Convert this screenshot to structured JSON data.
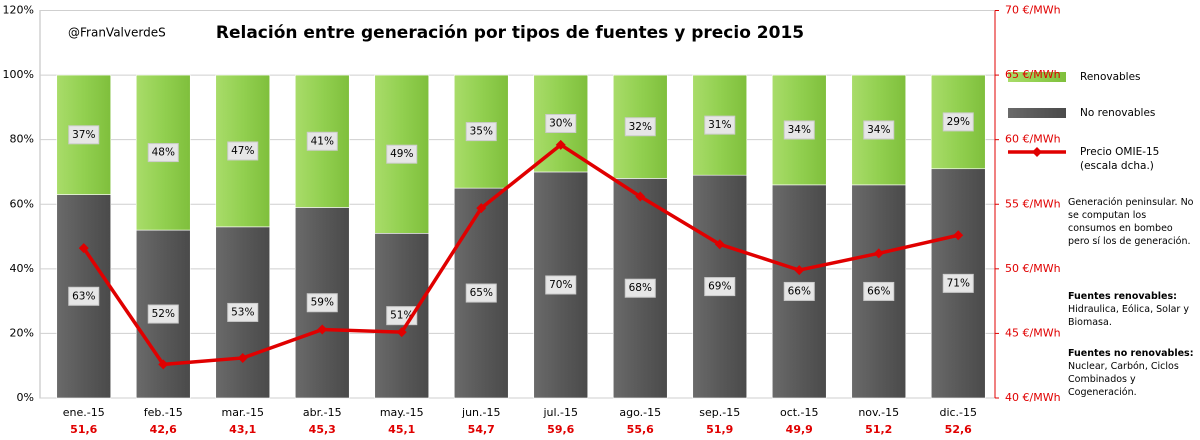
{
  "chart_data": {
    "type": "bar",
    "title": "Relación entre  generación por tipos de fuentes y precio 2015",
    "watermark": "@FranValverdeS",
    "categories": [
      "ene.-15",
      "feb.-15",
      "mar.-15",
      "abr.-15",
      "may.-15",
      "jun.-15",
      "jul.-15",
      "ago.-15",
      "sep.-15",
      "oct.-15",
      "nov.-15",
      "dic.-15"
    ],
    "series": [
      {
        "name": "Renovables",
        "type": "bar",
        "color": "#92d050",
        "values": [
          37,
          48,
          47,
          41,
          49,
          35,
          30,
          32,
          31,
          34,
          34,
          29
        ],
        "value_labels": [
          "37%",
          "48%",
          "47%",
          "41%",
          "49%",
          "35%",
          "30%",
          "32%",
          "31%",
          "34%",
          "34%",
          "29%"
        ]
      },
      {
        "name": "No renovables",
        "type": "bar",
        "color": "#595959",
        "values": [
          63,
          52,
          53,
          59,
          51,
          65,
          70,
          68,
          69,
          66,
          66,
          71
        ],
        "value_labels": [
          "63%",
          "52%",
          "53%",
          "59%",
          "51%",
          "65%",
          "70%",
          "68%",
          "69%",
          "66%",
          "66%",
          "71%"
        ]
      },
      {
        "name": "Precio OMIE-15\n(escala dcha.)",
        "type": "line",
        "axis": "y2",
        "color": "#e00000",
        "values": [
          51.6,
          42.6,
          43.1,
          45.3,
          45.1,
          54.7,
          59.6,
          55.6,
          51.9,
          49.9,
          51.2,
          52.6
        ],
        "value_labels": [
          "51,6",
          "42,6",
          "43,1",
          "45,3",
          "45,1",
          "54,7",
          "59,6",
          "55,6",
          "51,9",
          "49,9",
          "51,2",
          "52,6"
        ]
      }
    ],
    "ylim": [
      0,
      120
    ],
    "yticks": [
      {
        "value": 0,
        "label": "0%"
      },
      {
        "value": 20,
        "label": "20%"
      },
      {
        "value": 40,
        "label": "40%"
      },
      {
        "value": 60,
        "label": "60%"
      },
      {
        "value": 80,
        "label": "80%"
      },
      {
        "value": 100,
        "label": "100%"
      },
      {
        "value": 120,
        "label": "120%"
      }
    ],
    "y2lim": [
      40,
      70
    ],
    "y2ticks": [
      {
        "value": 40,
        "label": "40 €/MWh"
      },
      {
        "value": 45,
        "label": "45 €/MWh"
      },
      {
        "value": 50,
        "label": "50 €/MWh"
      },
      {
        "value": 55,
        "label": "55 €/MWh"
      },
      {
        "value": 60,
        "label": "60 €/MWh"
      },
      {
        "value": 65,
        "label": "65 €/MWh"
      },
      {
        "value": 70,
        "label": "70 €/MWh"
      }
    ],
    "grid": true,
    "legend": "right",
    "notes": [
      {
        "text": "Generación peninsular. No se computan los consumos en bombeo pero sí los de generación."
      },
      {
        "heading": "Fuentes renovables:",
        "text": "Hidraulica, Eólica, Solar y Biomasa."
      },
      {
        "heading": "Fuentes no renovables:",
        "text": "Nuclear, Carbón, Ciclos Combinados y Cogeneración."
      }
    ]
  }
}
